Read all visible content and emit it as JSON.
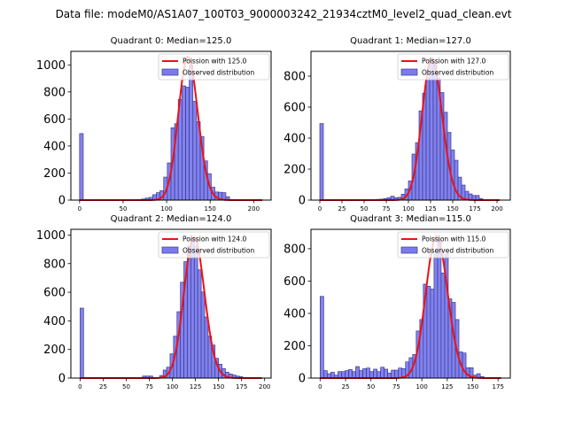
{
  "figure": {
    "suptitle": "Data file: modeM0/AS1A07_100T03_9000003242_21934cztM0_level2_quad_clean.evt"
  },
  "colors": {
    "bar_fill": "#7b7bef",
    "bar_edge": "#3a3a8c",
    "poisson_line": "#ee1111"
  },
  "chart_data": [
    {
      "type": "bar",
      "title": "Quadrant 0: Median=125.0",
      "legend": [
        "Poission with 125.0",
        "Observed distribution"
      ],
      "legend_position": "top-right",
      "poisson_mean": 125.0,
      "bin_width": 4.2,
      "xlim": [
        -10,
        220
      ],
      "ylim": [
        0,
        1100
      ],
      "xticks": [
        0,
        50,
        100,
        150,
        200
      ],
      "yticks": [
        0,
        200,
        400,
        600,
        800,
        1000
      ],
      "poisson_peak": 1060,
      "bins": [
        {
          "x": 0,
          "count": 492
        },
        {
          "x": 67.2,
          "count": 5
        },
        {
          "x": 71.4,
          "count": 8
        },
        {
          "x": 75.6,
          "count": 15
        },
        {
          "x": 79.8,
          "count": 20
        },
        {
          "x": 84.0,
          "count": 40
        },
        {
          "x": 88.2,
          "count": 55
        },
        {
          "x": 92.4,
          "count": 70
        },
        {
          "x": 96.6,
          "count": 170
        },
        {
          "x": 100.8,
          "count": 275
        },
        {
          "x": 105.0,
          "count": 535
        },
        {
          "x": 109.2,
          "count": 565
        },
        {
          "x": 113.4,
          "count": 745
        },
        {
          "x": 117.6,
          "count": 845
        },
        {
          "x": 121.8,
          "count": 835
        },
        {
          "x": 126.0,
          "count": 1000
        },
        {
          "x": 130.2,
          "count": 730
        },
        {
          "x": 134.4,
          "count": 580
        },
        {
          "x": 138.6,
          "count": 470
        },
        {
          "x": 142.8,
          "count": 290
        },
        {
          "x": 147.0,
          "count": 195
        },
        {
          "x": 151.2,
          "count": 95
        },
        {
          "x": 155.4,
          "count": 60
        },
        {
          "x": 159.6,
          "count": 58
        },
        {
          "x": 163.8,
          "count": 55
        },
        {
          "x": 168.0,
          "count": 25
        },
        {
          "x": 172.2,
          "count": 5
        }
      ],
      "poisson_range": [
        0,
        210
      ]
    },
    {
      "type": "bar",
      "title": "Quadrant 1: Median=127.0",
      "legend": [
        "Poission with 127.0",
        "Observed distribution"
      ],
      "legend_position": "top-right",
      "poisson_mean": 127.0,
      "bin_width": 4.0,
      "xlim": [
        -10,
        215
      ],
      "ylim": [
        0,
        960
      ],
      "xticks": [
        0,
        25,
        50,
        75,
        100,
        125,
        150,
        175,
        200
      ],
      "yticks": [
        0,
        200,
        400,
        600,
        800
      ],
      "poisson_peak": 915,
      "bins": [
        {
          "x": 0,
          "count": 494
        },
        {
          "x": 64,
          "count": 5
        },
        {
          "x": 68,
          "count": 6
        },
        {
          "x": 72,
          "count": 10
        },
        {
          "x": 76,
          "count": 15
        },
        {
          "x": 80,
          "count": 25
        },
        {
          "x": 84,
          "count": 15
        },
        {
          "x": 88,
          "count": 18
        },
        {
          "x": 92,
          "count": 38
        },
        {
          "x": 96,
          "count": 72
        },
        {
          "x": 100,
          "count": 124
        },
        {
          "x": 104,
          "count": 297
        },
        {
          "x": 108,
          "count": 371
        },
        {
          "x": 112,
          "count": 576
        },
        {
          "x": 116,
          "count": 690
        },
        {
          "x": 120,
          "count": 789
        },
        {
          "x": 124,
          "count": 918
        },
        {
          "x": 128,
          "count": 884
        },
        {
          "x": 132,
          "count": 789
        },
        {
          "x": 136,
          "count": 694
        },
        {
          "x": 140,
          "count": 567
        },
        {
          "x": 144,
          "count": 437
        },
        {
          "x": 148,
          "count": 323
        },
        {
          "x": 152,
          "count": 257
        },
        {
          "x": 156,
          "count": 148
        },
        {
          "x": 160,
          "count": 97
        },
        {
          "x": 164,
          "count": 57
        },
        {
          "x": 168,
          "count": 40
        },
        {
          "x": 172,
          "count": 30
        },
        {
          "x": 176,
          "count": 30
        },
        {
          "x": 180,
          "count": 10
        }
      ],
      "poisson_range": [
        0,
        203
      ]
    },
    {
      "type": "bar",
      "title": "Quadrant 2: Median=124.0",
      "legend": [
        "Poission with 124.0",
        "Observed distribution"
      ],
      "legend_position": "top-right",
      "poisson_mean": 124.0,
      "bin_width": 3.75,
      "xlim": [
        -10,
        207
      ],
      "ylim": [
        0,
        1040
      ],
      "xticks": [
        0,
        25,
        50,
        75,
        100,
        125,
        150,
        175,
        200
      ],
      "yticks": [
        0,
        200,
        400,
        600,
        800,
        1000
      ],
      "poisson_peak": 985,
      "bins": [
        {
          "x": 0,
          "count": 489
        },
        {
          "x": 67.5,
          "count": 14
        },
        {
          "x": 71.25,
          "count": 14
        },
        {
          "x": 75.0,
          "count": 14
        },
        {
          "x": 86.25,
          "count": 18
        },
        {
          "x": 90.0,
          "count": 56
        },
        {
          "x": 93.75,
          "count": 76
        },
        {
          "x": 97.5,
          "count": 169
        },
        {
          "x": 101.25,
          "count": 293
        },
        {
          "x": 105.0,
          "count": 464
        },
        {
          "x": 108.75,
          "count": 670
        },
        {
          "x": 112.5,
          "count": 814
        },
        {
          "x": 116.25,
          "count": 922
        },
        {
          "x": 120.0,
          "count": 973
        },
        {
          "x": 123.75,
          "count": 922
        },
        {
          "x": 127.5,
          "count": 757
        },
        {
          "x": 131.25,
          "count": 602
        },
        {
          "x": 135.0,
          "count": 427
        },
        {
          "x": 138.75,
          "count": 293
        },
        {
          "x": 142.5,
          "count": 231
        },
        {
          "x": 146.25,
          "count": 138
        },
        {
          "x": 150.0,
          "count": 97
        },
        {
          "x": 153.75,
          "count": 66
        },
        {
          "x": 157.5,
          "count": 41
        },
        {
          "x": 161.25,
          "count": 29
        },
        {
          "x": 165.0,
          "count": 21
        },
        {
          "x": 168.75,
          "count": 14
        },
        {
          "x": 172.5,
          "count": 10
        }
      ],
      "poisson_range": [
        0,
        197
      ]
    },
    {
      "type": "bar",
      "title": "Quadrant 3: Median=115.0",
      "legend": [
        "Poission with 115.0",
        "Observed distribution"
      ],
      "legend_position": "top-right",
      "poisson_mean": 115.0,
      "bin_width": 3.5,
      "xlim": [
        -9,
        187
      ],
      "ylim": [
        0,
        920
      ],
      "xticks": [
        0,
        25,
        50,
        75,
        100,
        125,
        150,
        175
      ],
      "yticks": [
        0,
        200,
        400,
        600,
        800
      ],
      "poisson_peak": 875,
      "bins": [
        {
          "x": 0,
          "count": 505
        },
        {
          "x": 3.5,
          "count": 46
        },
        {
          "x": 7.0,
          "count": 27
        },
        {
          "x": 10.5,
          "count": 36
        },
        {
          "x": 14.0,
          "count": 18
        },
        {
          "x": 17.5,
          "count": 40
        },
        {
          "x": 21.0,
          "count": 40
        },
        {
          "x": 24.5,
          "count": 46
        },
        {
          "x": 28.0,
          "count": 53
        },
        {
          "x": 31.5,
          "count": 40
        },
        {
          "x": 35.0,
          "count": 71
        },
        {
          "x": 38.5,
          "count": 46
        },
        {
          "x": 42.0,
          "count": 58
        },
        {
          "x": 45.5,
          "count": 62
        },
        {
          "x": 49.0,
          "count": 40
        },
        {
          "x": 52.5,
          "count": 55
        },
        {
          "x": 56.0,
          "count": 40
        },
        {
          "x": 59.5,
          "count": 67
        },
        {
          "x": 63.0,
          "count": 55
        },
        {
          "x": 66.5,
          "count": 31
        },
        {
          "x": 70.0,
          "count": 49
        },
        {
          "x": 73.5,
          "count": 49
        },
        {
          "x": 77.0,
          "count": 62
        },
        {
          "x": 80.5,
          "count": 58
        },
        {
          "x": 84.0,
          "count": 100
        },
        {
          "x": 87.5,
          "count": 126
        },
        {
          "x": 91.0,
          "count": 146
        },
        {
          "x": 94.5,
          "count": 291
        },
        {
          "x": 98.0,
          "count": 362
        },
        {
          "x": 101.5,
          "count": 581
        },
        {
          "x": 105.0,
          "count": 568
        },
        {
          "x": 108.5,
          "count": 550
        },
        {
          "x": 112.0,
          "count": 774
        },
        {
          "x": 115.5,
          "count": 851
        },
        {
          "x": 119.0,
          "count": 650
        },
        {
          "x": 122.5,
          "count": 768
        },
        {
          "x": 126.0,
          "count": 490
        },
        {
          "x": 129.5,
          "count": 468
        },
        {
          "x": 133.0,
          "count": 362
        },
        {
          "x": 136.5,
          "count": 162
        },
        {
          "x": 140.0,
          "count": 155
        },
        {
          "x": 143.5,
          "count": 64
        },
        {
          "x": 147.0,
          "count": 64
        },
        {
          "x": 150.5,
          "count": 18
        },
        {
          "x": 154.0,
          "count": 27
        },
        {
          "x": 157.5,
          "count": 9
        },
        {
          "x": 161.0,
          "count": 4
        }
      ],
      "poisson_range": [
        0,
        178
      ]
    }
  ]
}
